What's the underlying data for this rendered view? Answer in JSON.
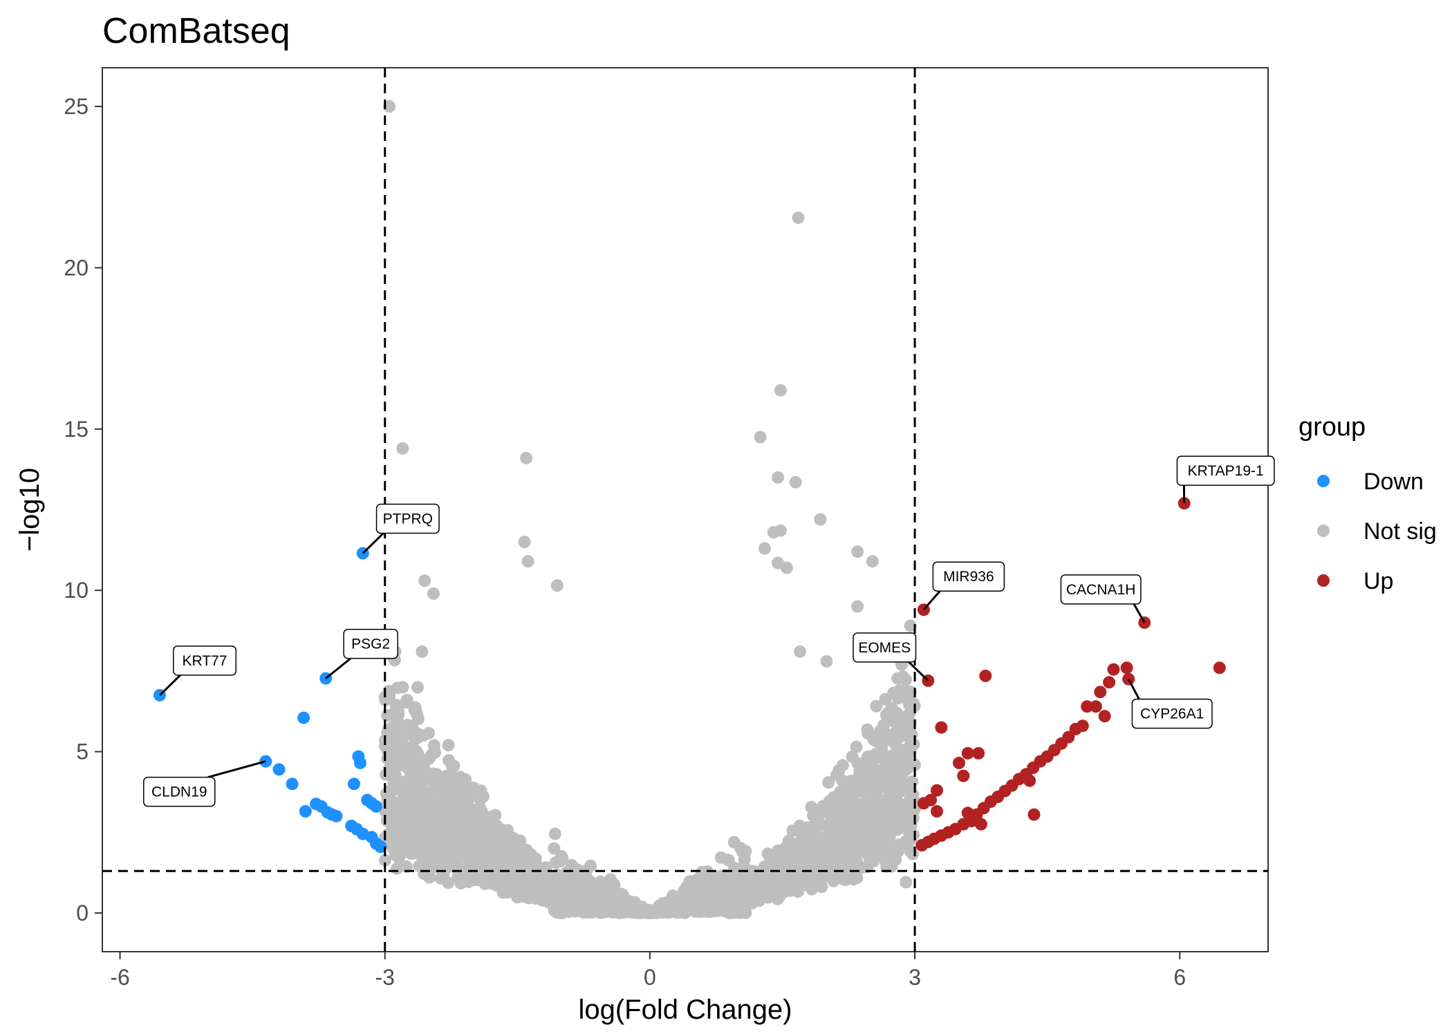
{
  "chart_data": {
    "type": "scatter",
    "title": "ComBatseq",
    "xlabel": "log(Fold Change)",
    "ylabel": "−log10",
    "xlim": [
      -6.2,
      7.0
    ],
    "ylim": [
      -1.2,
      26.2
    ],
    "x_ticks": [
      {
        "value": -6,
        "label": "-6"
      },
      {
        "value": -3,
        "label": "-3"
      },
      {
        "value": 0,
        "label": "0"
      },
      {
        "value": 3,
        "label": "3"
      },
      {
        "value": 6,
        "label": "6"
      }
    ],
    "y_ticks": [
      {
        "value": 0,
        "label": "0"
      },
      {
        "value": 5,
        "label": "5"
      },
      {
        "value": 10,
        "label": "10"
      },
      {
        "value": 15,
        "label": "15"
      },
      {
        "value": 20,
        "label": "20"
      },
      {
        "value": 25,
        "label": "25"
      }
    ],
    "grid": false,
    "thresholds": {
      "x": [
        -3,
        3
      ],
      "y": 1.3
    },
    "legend": {
      "title": "group",
      "position": "right",
      "items": [
        {
          "label": "Down",
          "color": "#1E90FF"
        },
        {
          "label": "Not sig",
          "color": "#BEBEBE"
        },
        {
          "label": "Up",
          "color": "#B22222"
        }
      ]
    },
    "series": [
      {
        "name": "Down",
        "color": "#1E90FF",
        "points": [
          {
            "x": -5.55,
            "y": 6.75
          },
          {
            "x": -3.25,
            "y": 11.15
          },
          {
            "x": -3.67,
            "y": 7.27
          },
          {
            "x": -3.92,
            "y": 6.05
          },
          {
            "x": -4.35,
            "y": 4.7
          },
          {
            "x": -4.2,
            "y": 4.45
          },
          {
            "x": -4.05,
            "y": 4.0
          },
          {
            "x": -3.9,
            "y": 3.15
          },
          {
            "x": -3.78,
            "y": 3.38
          },
          {
            "x": -3.72,
            "y": 3.3
          },
          {
            "x": -3.65,
            "y": 3.12
          },
          {
            "x": -3.6,
            "y": 3.05
          },
          {
            "x": -3.55,
            "y": 3.0
          },
          {
            "x": -3.38,
            "y": 2.7
          },
          {
            "x": -3.32,
            "y": 2.6
          },
          {
            "x": -3.25,
            "y": 2.45
          },
          {
            "x": -3.15,
            "y": 2.35
          },
          {
            "x": -3.1,
            "y": 2.15
          },
          {
            "x": -3.3,
            "y": 4.85
          },
          {
            "x": -3.28,
            "y": 4.65
          },
          {
            "x": -3.35,
            "y": 4.0
          },
          {
            "x": -3.2,
            "y": 3.5
          },
          {
            "x": -3.15,
            "y": 3.4
          },
          {
            "x": -3.1,
            "y": 3.3
          },
          {
            "x": -3.05,
            "y": 2.05
          }
        ]
      },
      {
        "name": "Up",
        "color": "#B22222",
        "points": [
          {
            "x": 6.05,
            "y": 12.7
          },
          {
            "x": 5.6,
            "y": 9.0
          },
          {
            "x": 3.1,
            "y": 9.4
          },
          {
            "x": 3.15,
            "y": 7.2
          },
          {
            "x": 6.45,
            "y": 7.6
          },
          {
            "x": 3.8,
            "y": 7.35
          },
          {
            "x": 5.4,
            "y": 7.6
          },
          {
            "x": 5.25,
            "y": 7.55
          },
          {
            "x": 5.42,
            "y": 7.25
          },
          {
            "x": 5.2,
            "y": 7.15
          },
          {
            "x": 5.1,
            "y": 6.85
          },
          {
            "x": 4.95,
            "y": 6.4
          },
          {
            "x": 5.05,
            "y": 6.4
          },
          {
            "x": 5.15,
            "y": 6.1
          },
          {
            "x": 3.3,
            "y": 5.75
          },
          {
            "x": 3.6,
            "y": 4.95
          },
          {
            "x": 3.72,
            "y": 4.95
          },
          {
            "x": 3.5,
            "y": 4.65
          },
          {
            "x": 3.55,
            "y": 4.25
          },
          {
            "x": 3.25,
            "y": 3.8
          },
          {
            "x": 3.25,
            "y": 3.15
          },
          {
            "x": 3.1,
            "y": 3.4
          },
          {
            "x": 3.18,
            "y": 3.5
          },
          {
            "x": 3.6,
            "y": 3.1
          },
          {
            "x": 3.75,
            "y": 2.75
          },
          {
            "x": 4.35,
            "y": 3.05
          },
          {
            "x": 4.3,
            "y": 4.1
          },
          {
            "x": 3.08,
            "y": 2.1
          },
          {
            "x": 3.15,
            "y": 2.2
          },
          {
            "x": 3.22,
            "y": 2.3
          },
          {
            "x": 3.3,
            "y": 2.4
          },
          {
            "x": 3.38,
            "y": 2.5
          },
          {
            "x": 3.46,
            "y": 2.6
          },
          {
            "x": 3.55,
            "y": 2.75
          },
          {
            "x": 3.64,
            "y": 2.85
          },
          {
            "x": 3.7,
            "y": 3.05
          },
          {
            "x": 3.78,
            "y": 3.25
          },
          {
            "x": 3.86,
            "y": 3.45
          },
          {
            "x": 3.94,
            "y": 3.6
          },
          {
            "x": 4.02,
            "y": 3.78
          },
          {
            "x": 4.1,
            "y": 3.95
          },
          {
            "x": 4.18,
            "y": 4.15
          },
          {
            "x": 4.26,
            "y": 4.3
          },
          {
            "x": 4.34,
            "y": 4.5
          },
          {
            "x": 4.42,
            "y": 4.7
          },
          {
            "x": 4.5,
            "y": 4.85
          },
          {
            "x": 4.58,
            "y": 5.05
          },
          {
            "x": 4.66,
            "y": 5.25
          },
          {
            "x": 4.74,
            "y": 5.45
          },
          {
            "x": 4.82,
            "y": 5.7
          },
          {
            "x": 4.9,
            "y": 5.8
          }
        ]
      }
    ],
    "labels": [
      {
        "text": "PTPRQ",
        "x": -3.25,
        "y": 11.15
      },
      {
        "text": "KRT77",
        "x": -5.55,
        "y": 6.75
      },
      {
        "text": "PSG2",
        "x": -3.67,
        "y": 7.27
      },
      {
        "text": "CLDN19",
        "x": -4.35,
        "y": 4.7
      },
      {
        "text": "KRTAP19-1",
        "x": 6.05,
        "y": 12.7
      },
      {
        "text": "MIR936",
        "x": 3.1,
        "y": 9.4
      },
      {
        "text": "CACNA1H",
        "x": 5.6,
        "y": 9.0
      },
      {
        "text": "EOMES",
        "x": 3.15,
        "y": 7.2
      },
      {
        "text": "CYP26A1",
        "x": 5.42,
        "y": 7.25
      }
    ],
    "notsig_outliers": [
      {
        "x": -2.95,
        "y": 25.0
      },
      {
        "x": 1.68,
        "y": 21.55
      },
      {
        "x": 1.48,
        "y": 16.2
      },
      {
        "x": -2.8,
        "y": 14.4
      },
      {
        "x": 1.25,
        "y": 14.75
      },
      {
        "x": -1.4,
        "y": 14.1
      },
      {
        "x": 1.45,
        "y": 13.5
      },
      {
        "x": 1.65,
        "y": 13.35
      },
      {
        "x": 1.93,
        "y": 12.2
      },
      {
        "x": 1.4,
        "y": 11.8
      },
      {
        "x": 1.48,
        "y": 11.85
      },
      {
        "x": 1.3,
        "y": 11.3
      },
      {
        "x": -1.42,
        "y": 11.5
      },
      {
        "x": 2.35,
        "y": 11.2
      },
      {
        "x": 2.52,
        "y": 10.9
      },
      {
        "x": 1.45,
        "y": 10.85
      },
      {
        "x": 1.55,
        "y": 10.7
      },
      {
        "x": -1.38,
        "y": 10.9
      },
      {
        "x": -2.55,
        "y": 10.3
      },
      {
        "x": -2.45,
        "y": 9.9
      },
      {
        "x": -1.05,
        "y": 10.15
      },
      {
        "x": 2.35,
        "y": 9.5
      },
      {
        "x": -2.58,
        "y": 8.1
      },
      {
        "x": -2.75,
        "y": 6.6
      },
      {
        "x": -2.85,
        "y": 6.25
      },
      {
        "x": -2.85,
        "y": 4.9
      },
      {
        "x": 2.95,
        "y": 8.9
      },
      {
        "x": 2.85,
        "y": 7.7
      },
      {
        "x": 2.95,
        "y": 5.9
      },
      {
        "x": 2.95,
        "y": 5.0
      },
      {
        "x": 2.9,
        "y": 0.95
      },
      {
        "x": 2.0,
        "y": 7.8
      },
      {
        "x": 1.7,
        "y": 8.1
      }
    ]
  }
}
